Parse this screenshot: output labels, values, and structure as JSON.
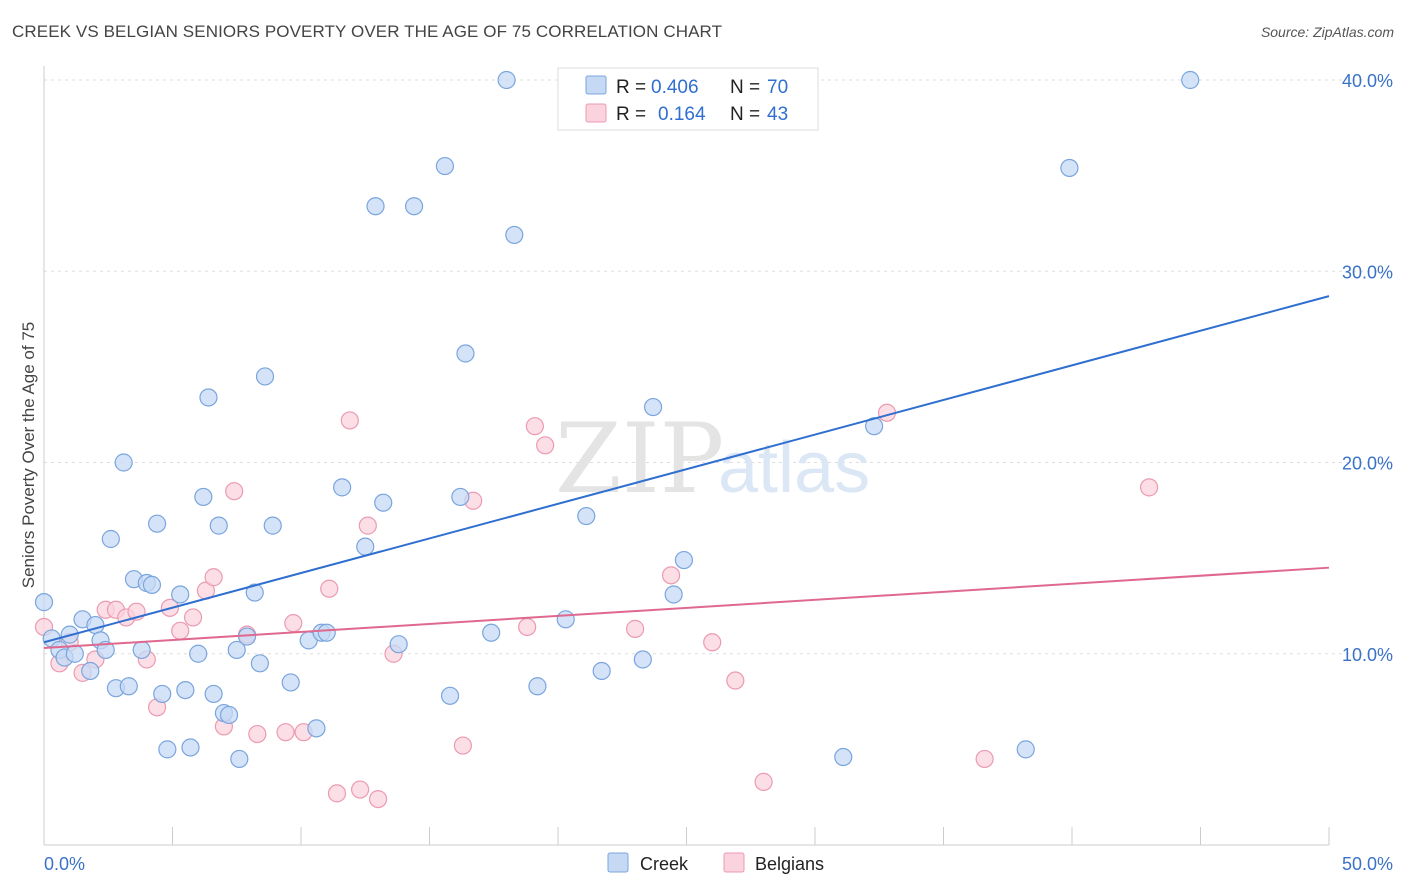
{
  "header": {
    "title": "CREEK VS BELGIAN SENIORS POVERTY OVER THE AGE OF 75 CORRELATION CHART",
    "source": "Source: ZipAtlas.com"
  },
  "watermark": {
    "zip": "ZIP",
    "atlas": "atlas"
  },
  "legend_box": {
    "rows": [
      {
        "r_label": "R = ",
        "r_value": "0.406",
        "n_label": "N = ",
        "n_value": "70"
      },
      {
        "r_label": "R = ",
        "r_value": "0.164",
        "n_label": "N = ",
        "n_value": "43"
      }
    ]
  },
  "colors": {
    "creek_fill": "#c5d9f5",
    "creek_stroke": "#7aa5dd",
    "creek_line": "#2f6fd0",
    "belgian_fill": "#fbd3de",
    "belgian_stroke": "#eb9ab1",
    "belgian_line": "#e0688f",
    "axis_text": "#3a72c8",
    "value_text": "#2f6fd0"
  },
  "chart_data": {
    "type": "scatter",
    "title": "CREEK VS BELGIAN SENIORS POVERTY OVER THE AGE OF 75 CORRELATION CHART",
    "xlabel": "",
    "ylabel": "Seniors Poverty Over the Age of 75",
    "xlim": [
      0,
      50
    ],
    "ylim": [
      0,
      40
    ],
    "x_tick_labels": [
      "0.0%",
      "50.0%"
    ],
    "y_ticks": [
      10,
      20,
      30,
      40
    ],
    "y_tick_labels": [
      "10.0%",
      "20.0%",
      "30.0%",
      "40.0%"
    ],
    "grid": true,
    "legend_position": "bottom-center",
    "series": [
      {
        "name": "Creek",
        "r": 0.406,
        "n": 70,
        "trend": {
          "x": [
            0,
            50
          ],
          "y": [
            10.6,
            28.7
          ]
        },
        "points": [
          {
            "x": 0.0,
            "y": 12.7
          },
          {
            "x": 0.3,
            "y": 10.8
          },
          {
            "x": 0.6,
            "y": 10.2
          },
          {
            "x": 0.8,
            "y": 9.8
          },
          {
            "x": 1.0,
            "y": 11.0
          },
          {
            "x": 1.2,
            "y": 10.0
          },
          {
            "x": 1.5,
            "y": 11.8
          },
          {
            "x": 1.8,
            "y": 9.1
          },
          {
            "x": 2.0,
            "y": 11.5
          },
          {
            "x": 2.2,
            "y": 10.7
          },
          {
            "x": 2.4,
            "y": 10.2
          },
          {
            "x": 2.6,
            "y": 16.0
          },
          {
            "x": 2.8,
            "y": 8.2
          },
          {
            "x": 3.1,
            "y": 20.0
          },
          {
            "x": 3.3,
            "y": 8.3
          },
          {
            "x": 3.5,
            "y": 13.9
          },
          {
            "x": 3.8,
            "y": 10.2
          },
          {
            "x": 4.0,
            "y": 13.7
          },
          {
            "x": 4.2,
            "y": 13.6
          },
          {
            "x": 4.4,
            "y": 16.8
          },
          {
            "x": 4.6,
            "y": 7.9
          },
          {
            "x": 4.8,
            "y": 5.0
          },
          {
            "x": 5.3,
            "y": 13.1
          },
          {
            "x": 5.5,
            "y": 8.1
          },
          {
            "x": 5.7,
            "y": 5.1
          },
          {
            "x": 6.0,
            "y": 10.0
          },
          {
            "x": 6.2,
            "y": 18.2
          },
          {
            "x": 6.4,
            "y": 23.4
          },
          {
            "x": 6.6,
            "y": 7.9
          },
          {
            "x": 6.8,
            "y": 16.7
          },
          {
            "x": 7.0,
            "y": 6.9
          },
          {
            "x": 7.2,
            "y": 6.8
          },
          {
            "x": 7.5,
            "y": 10.2
          },
          {
            "x": 7.6,
            "y": 4.5
          },
          {
            "x": 7.9,
            "y": 10.9
          },
          {
            "x": 8.2,
            "y": 13.2
          },
          {
            "x": 8.4,
            "y": 9.5
          },
          {
            "x": 8.6,
            "y": 24.5
          },
          {
            "x": 8.9,
            "y": 16.7
          },
          {
            "x": 9.6,
            "y": 8.5
          },
          {
            "x": 10.3,
            "y": 10.7
          },
          {
            "x": 10.6,
            "y": 6.1
          },
          {
            "x": 10.8,
            "y": 11.1
          },
          {
            "x": 11.0,
            "y": 11.1
          },
          {
            "x": 11.6,
            "y": 18.7
          },
          {
            "x": 12.5,
            "y": 15.6
          },
          {
            "x": 12.9,
            "y": 33.4
          },
          {
            "x": 13.2,
            "y": 17.9
          },
          {
            "x": 13.8,
            "y": 10.5
          },
          {
            "x": 14.4,
            "y": 33.4
          },
          {
            "x": 15.6,
            "y": 35.5
          },
          {
            "x": 15.8,
            "y": 7.8
          },
          {
            "x": 16.2,
            "y": 18.2
          },
          {
            "x": 16.4,
            "y": 25.7
          },
          {
            "x": 17.4,
            "y": 11.1
          },
          {
            "x": 18.0,
            "y": 40.0
          },
          {
            "x": 18.3,
            "y": 31.9
          },
          {
            "x": 19.2,
            "y": 8.3
          },
          {
            "x": 20.3,
            "y": 11.8
          },
          {
            "x": 21.1,
            "y": 17.2
          },
          {
            "x": 21.7,
            "y": 9.1
          },
          {
            "x": 23.3,
            "y": 9.7
          },
          {
            "x": 23.7,
            "y": 22.9
          },
          {
            "x": 24.5,
            "y": 13.1
          },
          {
            "x": 24.9,
            "y": 14.9
          },
          {
            "x": 31.1,
            "y": 4.6
          },
          {
            "x": 32.3,
            "y": 21.9
          },
          {
            "x": 38.2,
            "y": 5.0
          },
          {
            "x": 39.9,
            "y": 35.4
          },
          {
            "x": 44.6,
            "y": 40.0
          }
        ]
      },
      {
        "name": "Belgians",
        "r": 0.164,
        "n": 43,
        "trend": {
          "x": [
            0,
            50
          ],
          "y": [
            10.3,
            14.5
          ]
        },
        "points": [
          {
            "x": 0.0,
            "y": 11.4
          },
          {
            "x": 0.6,
            "y": 9.5
          },
          {
            "x": 1.0,
            "y": 10.6
          },
          {
            "x": 1.5,
            "y": 9.0
          },
          {
            "x": 2.0,
            "y": 9.7
          },
          {
            "x": 2.4,
            "y": 12.3
          },
          {
            "x": 2.8,
            "y": 12.3
          },
          {
            "x": 3.2,
            "y": 11.9
          },
          {
            "x": 3.6,
            "y": 12.2
          },
          {
            "x": 4.0,
            "y": 9.7
          },
          {
            "x": 4.4,
            "y": 7.2
          },
          {
            "x": 4.9,
            "y": 12.4
          },
          {
            "x": 5.3,
            "y": 11.2
          },
          {
            "x": 5.8,
            "y": 11.9
          },
          {
            "x": 6.3,
            "y": 13.3
          },
          {
            "x": 6.6,
            "y": 14.0
          },
          {
            "x": 7.0,
            "y": 6.2
          },
          {
            "x": 7.4,
            "y": 18.5
          },
          {
            "x": 7.9,
            "y": 11.0
          },
          {
            "x": 8.3,
            "y": 5.8
          },
          {
            "x": 9.4,
            "y": 5.9
          },
          {
            "x": 9.7,
            "y": 11.6
          },
          {
            "x": 10.1,
            "y": 5.9
          },
          {
            "x": 11.1,
            "y": 13.4
          },
          {
            "x": 11.4,
            "y": 2.7
          },
          {
            "x": 11.9,
            "y": 22.2
          },
          {
            "x": 12.3,
            "y": 2.9
          },
          {
            "x": 12.6,
            "y": 16.7
          },
          {
            "x": 13.0,
            "y": 2.4
          },
          {
            "x": 13.6,
            "y": 10.0
          },
          {
            "x": 16.3,
            "y": 5.2
          },
          {
            "x": 16.7,
            "y": 18.0
          },
          {
            "x": 18.8,
            "y": 11.4
          },
          {
            "x": 19.1,
            "y": 21.9
          },
          {
            "x": 19.5,
            "y": 20.9
          },
          {
            "x": 23.0,
            "y": 11.3
          },
          {
            "x": 24.4,
            "y": 14.1
          },
          {
            "x": 26.0,
            "y": 10.6
          },
          {
            "x": 26.9,
            "y": 8.6
          },
          {
            "x": 28.0,
            "y": 3.3
          },
          {
            "x": 32.8,
            "y": 22.6
          },
          {
            "x": 36.6,
            "y": 4.5
          },
          {
            "x": 43.0,
            "y": 18.7
          }
        ]
      }
    ]
  }
}
